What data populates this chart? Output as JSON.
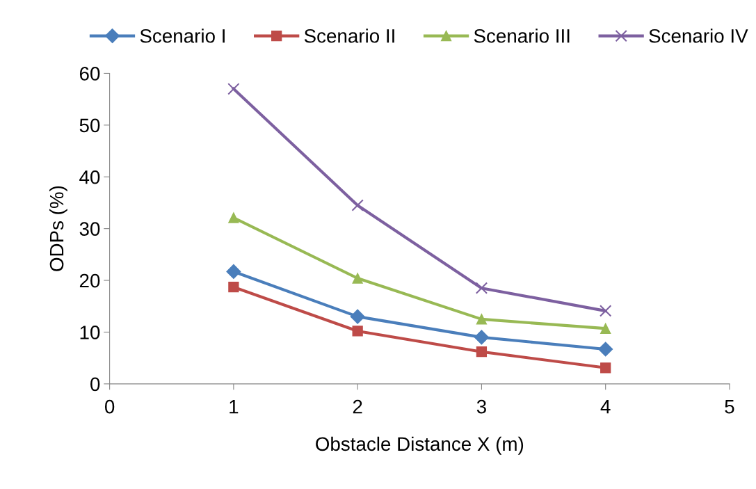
{
  "chart_data": {
    "type": "line",
    "xlabel": "Obstacle Distance X (m)",
    "ylabel": "ODPs (%)",
    "x": [
      1,
      2,
      3,
      4
    ],
    "series": [
      {
        "name": "Scenario I",
        "color": "#4a7ebb",
        "marker": "diamond",
        "values": [
          21.7,
          13.0,
          9.0,
          6.7
        ]
      },
      {
        "name": "Scenario II",
        "color": "#be4b48",
        "marker": "square",
        "values": [
          18.7,
          10.2,
          6.2,
          3.1
        ]
      },
      {
        "name": "Scenario III",
        "color": "#98b954",
        "marker": "triangle",
        "values": [
          32.1,
          20.4,
          12.5,
          10.7
        ]
      },
      {
        "name": "Scenario IV",
        "color": "#7d60a0",
        "marker": "cross",
        "values": [
          57.0,
          34.5,
          18.5,
          14.1
        ]
      }
    ],
    "xlim": [
      0,
      5
    ],
    "xticks": [
      0,
      1,
      2,
      3,
      4,
      5
    ],
    "ylim": [
      0,
      60
    ],
    "yticks": [
      0,
      10,
      20,
      30,
      40,
      50,
      60
    ],
    "grid": false,
    "legend": "top",
    "line_style": "solid"
  }
}
